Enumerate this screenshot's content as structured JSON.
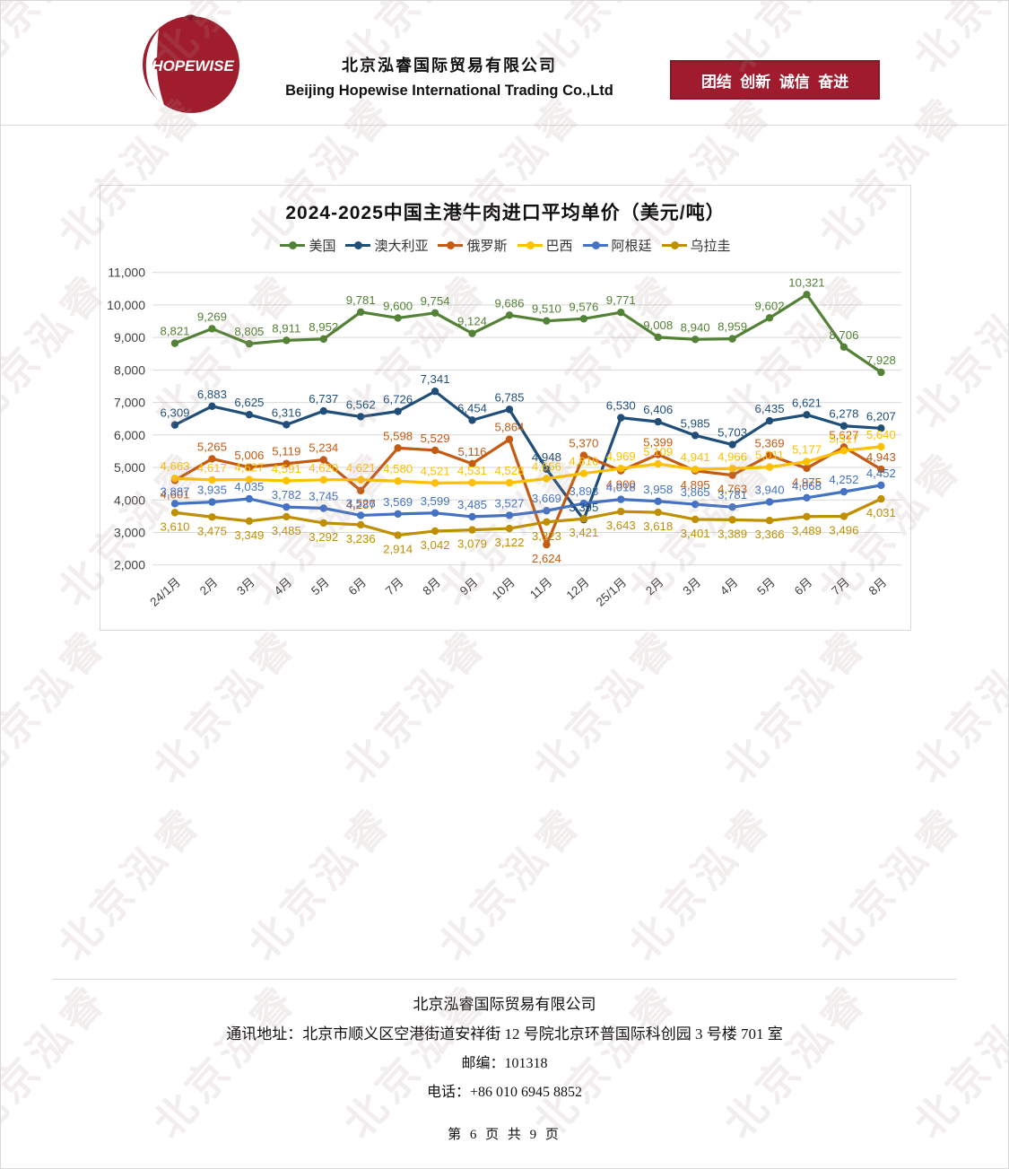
{
  "page": {
    "watermark_text": "北京泓睿"
  },
  "header": {
    "logo_text": "HOPEWISE",
    "company_cn": "北京泓睿国际贸易有限公司",
    "company_en": "Beijing Hopewise International Trading Co.,Ltd",
    "slogan": "团结  创新  诚信  奋进",
    "banner_color": "#a01b2e"
  },
  "chart_data": {
    "type": "line",
    "title": "2024-2025中国主港牛肉进口平均单价（美元/吨）",
    "categories": [
      "24/1月",
      "2月",
      "3月",
      "4月",
      "5月",
      "6月",
      "7月",
      "8月",
      "9月",
      "10月",
      "11月",
      "12月",
      "25/1月",
      "2月",
      "3月",
      "4月",
      "5月",
      "6月",
      "7月",
      "8月"
    ],
    "series": [
      {
        "name": "美国",
        "color": "#538135",
        "values": [
          8821,
          9269,
          8805,
          8911,
          8952,
          9781,
          9600,
          9754,
          9124,
          9686,
          9510,
          9576,
          9771,
          9008,
          8940,
          8959,
          9602,
          10321,
          8706,
          7928
        ]
      },
      {
        "name": "澳大利亚",
        "color": "#1f4e79",
        "values": [
          6309,
          6883,
          6625,
          6316,
          6737,
          6562,
          6726,
          7341,
          6454,
          6785,
          4948,
          3395,
          6530,
          6406,
          5985,
          5703,
          6435,
          6621,
          6278,
          6207
        ]
      },
      {
        "name": "俄罗斯",
        "color": "#c55a11",
        "values": [
          4601,
          5265,
          5006,
          5119,
          5234,
          4287,
          5598,
          5529,
          5116,
          5864,
          2624,
          5370,
          4900,
          5399,
          4895,
          4763,
          5369,
          4975,
          5627,
          4943
        ]
      },
      {
        "name": "巴西",
        "color": "#ffc000",
        "values": [
          4663,
          4617,
          4627,
          4591,
          4620,
          4621,
          4580,
          4521,
          4531,
          4528,
          4656,
          4816,
          4969,
          5109,
          4941,
          4966,
          5011,
          5177,
          5517,
          5640
        ]
      },
      {
        "name": "阿根廷",
        "color": "#4472c4",
        "values": [
          3887,
          3935,
          4035,
          3782,
          3745,
          3526,
          3569,
          3599,
          3485,
          3527,
          3669,
          3893,
          4018,
          3958,
          3865,
          3781,
          3940,
          4068,
          4252,
          4452
        ]
      },
      {
        "name": "乌拉圭",
        "color": "#bf8f00",
        "values": [
          3610,
          3475,
          3349,
          3485,
          3292,
          3236,
          2914,
          3042,
          3079,
          3122,
          3323,
          3421,
          3643,
          3618,
          3401,
          3389,
          3366,
          3489,
          3496,
          4031
        ]
      }
    ],
    "ylim": [
      2000,
      11000
    ],
    "ytick_step": 1000,
    "grid": true,
    "legend_position": "top"
  },
  "footer": {
    "company": "北京泓睿国际贸易有限公司",
    "address": "通讯地址：北京市顺义区空港街道安祥街 12 号院北京环普国际科创园 3 号楼 701 室",
    "postcode": "邮编：101318",
    "phone": "电话：+86 010 6945 8852",
    "page_number": "第 6 页 共 9 页"
  }
}
